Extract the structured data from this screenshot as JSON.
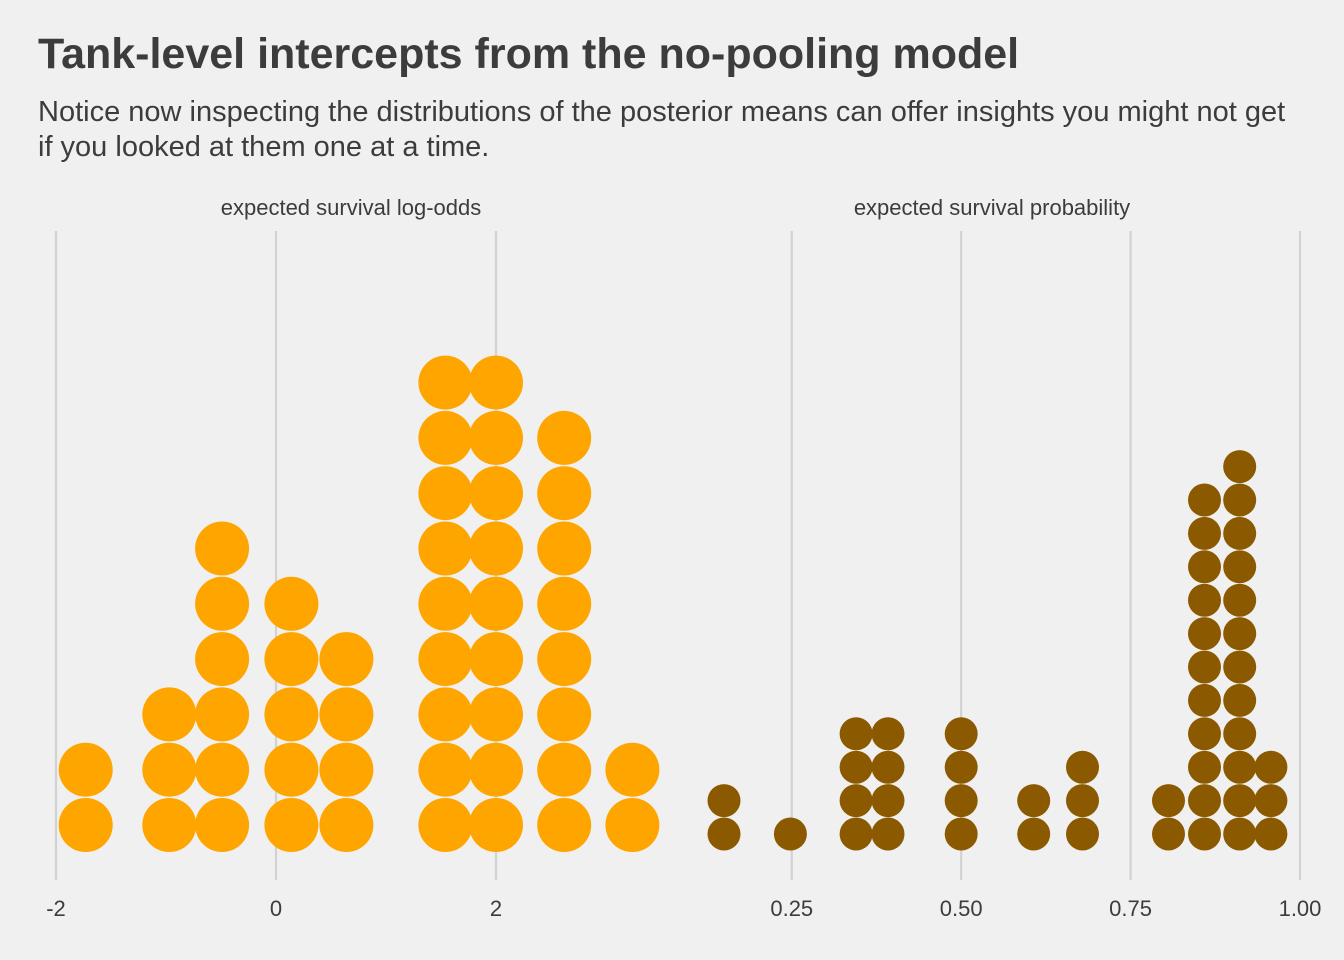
{
  "title": "Tank-level intercepts from the no-pooling model",
  "subtitle": "Notice now inspecting the distributions of the posterior means can offer insights you might not get if you looked at them one at a time.",
  "chart_data": [
    {
      "type": "dotplot",
      "facet_label": "expected survival log-odds",
      "xlim": [
        -2,
        3.4
      ],
      "x_ticks": [
        -2,
        0,
        2
      ],
      "x_tick_labels": [
        "-2",
        "0",
        "2"
      ],
      "grid": true,
      "color": "#ffa500",
      "stacks": [
        {
          "x": -1.73,
          "count": 2
        },
        {
          "x": -0.97,
          "count": 3
        },
        {
          "x": -0.49,
          "count": 6
        },
        {
          "x": 0.14,
          "count": 5
        },
        {
          "x": 0.64,
          "count": 4
        },
        {
          "x": 1.54,
          "count": 9
        },
        {
          "x": 2.0,
          "count": 9
        },
        {
          "x": 2.62,
          "count": 8
        },
        {
          "x": 3.24,
          "count": 2
        }
      ]
    },
    {
      "type": "dotplot",
      "facet_label": "expected survival probability",
      "xlim": [
        0.15,
        1.0
      ],
      "x_ticks": [
        0.25,
        0.5,
        0.75,
        1.0
      ],
      "x_tick_labels": [
        "0.25",
        "0.50",
        "0.75",
        "1.00"
      ],
      "grid": true,
      "color": "#8b5a00",
      "stacks": [
        {
          "x": 0.15,
          "count": 2
        },
        {
          "x": 0.248,
          "count": 1
        },
        {
          "x": 0.345,
          "count": 4
        },
        {
          "x": 0.392,
          "count": 4
        },
        {
          "x": 0.5,
          "count": 4
        },
        {
          "x": 0.607,
          "count": 2
        },
        {
          "x": 0.679,
          "count": 3
        },
        {
          "x": 0.806,
          "count": 2
        },
        {
          "x": 0.859,
          "count": 11
        },
        {
          "x": 0.911,
          "count": 12
        },
        {
          "x": 0.957,
          "count": 3
        }
      ]
    }
  ]
}
